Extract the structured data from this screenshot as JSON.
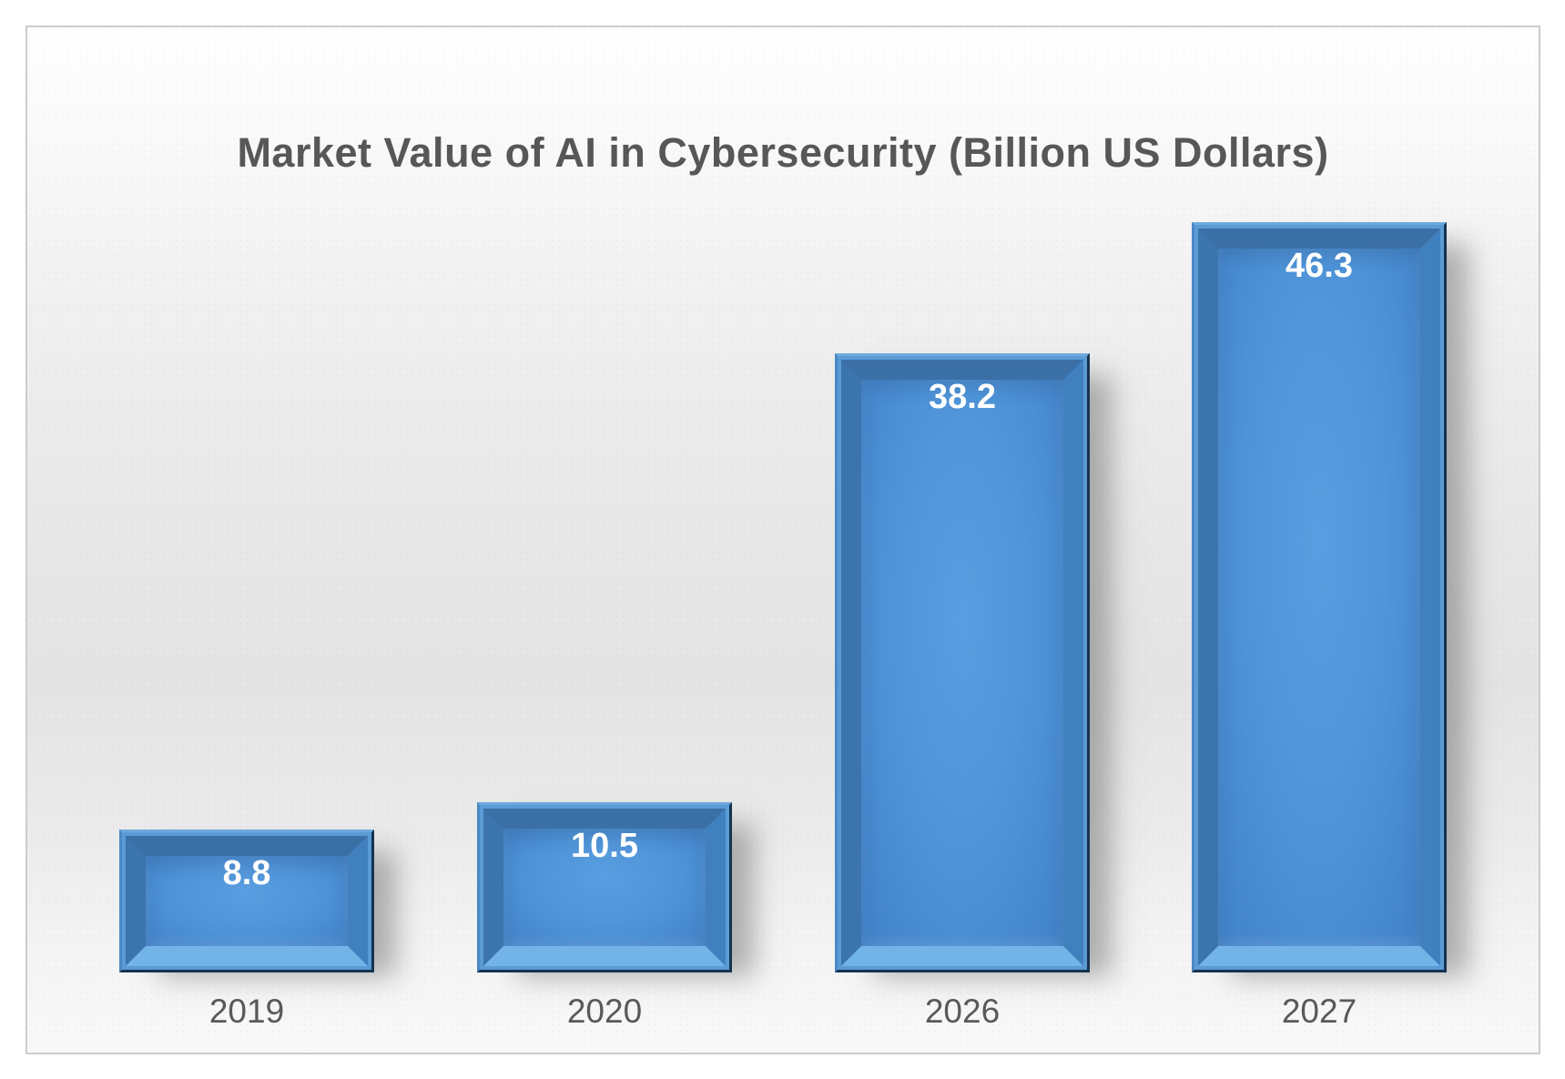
{
  "chart": {
    "title": "Market Value of AI in Cybersecurity (Billion US Dollars)"
  },
  "chart_data": {
    "type": "bar",
    "title": "Market Value of AI in Cybersecurity (Billion US Dollars)",
    "categories": [
      "2019",
      "2020",
      "2026",
      "2027"
    ],
    "values": [
      8.8,
      10.5,
      38.2,
      46.3
    ],
    "value_labels": [
      "8.8",
      "10.5",
      "38.2",
      "46.3"
    ],
    "xlabel": "",
    "ylabel": "",
    "ylim": [
      0,
      48
    ],
    "grid": false,
    "legend": "none",
    "y_axis_visible": false,
    "data_label_position": "inside-end",
    "colors": {
      "bar_face": "#4a8fd6",
      "bar_bevel_dark": "#3b70a6",
      "bar_bevel_light": "#73b4e8",
      "bar_outer_edge_dark": "#16334f",
      "bar_rim": "#5b9bd5",
      "value_label": "#ffffff",
      "axis_label": "#595959",
      "title": "#575757",
      "frame_border": "#cccccc",
      "background_top": "#ffffff",
      "background_mid": "#e5e5e5"
    }
  }
}
